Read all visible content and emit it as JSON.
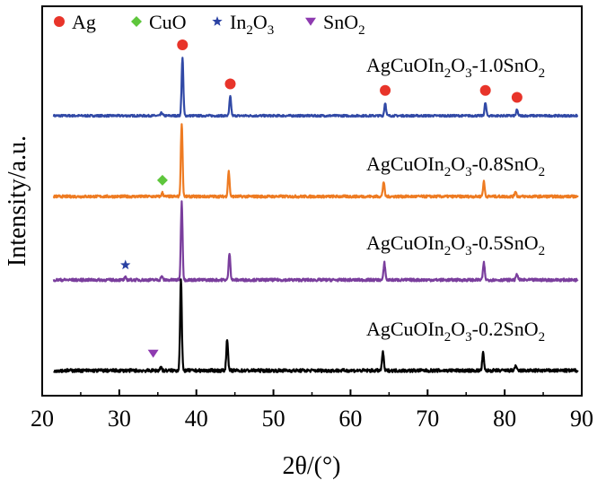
{
  "chart_data": {
    "type": "line",
    "xlabel": "2θ/(°)",
    "ylabel": "Intensity/a.u.",
    "xlim": [
      20,
      90
    ],
    "x_ticks": [
      20,
      30,
      40,
      50,
      60,
      70,
      80,
      90
    ],
    "grid": false,
    "legend": {
      "placement": "top-left",
      "items": [
        {
          "label": "Ag",
          "marker": "circle",
          "color": "#e8342a"
        },
        {
          "label": "CuO",
          "marker": "diamond",
          "color": "#5ec63c"
        },
        {
          "label": "In2O3",
          "marker": "star",
          "color": "#2a41a3"
        },
        {
          "label": "SnO2",
          "marker": "triangle-down",
          "color": "#8e3bb0"
        }
      ]
    },
    "x_start": 21.5,
    "x_end": 89.5,
    "series": [
      {
        "name": "AgCuOIn2O3-1.0SnO2",
        "color": "#3149a6",
        "peaks": [
          {
            "x": 35.5,
            "h": 0.05
          },
          {
            "x": 38.2,
            "h": 1.0
          },
          {
            "x": 44.4,
            "h": 0.33
          },
          {
            "x": 64.5,
            "h": 0.22
          },
          {
            "x": 77.5,
            "h": 0.22
          },
          {
            "x": 81.6,
            "h": 0.1
          }
        ],
        "markers": [
          {
            "x": 38.2,
            "type": "Ag"
          },
          {
            "x": 44.4,
            "type": "Ag"
          },
          {
            "x": 64.5,
            "type": "Ag"
          },
          {
            "x": 77.5,
            "type": "Ag"
          },
          {
            "x": 81.6,
            "type": "Ag"
          }
        ]
      },
      {
        "name": "AgCuOIn2O3-0.8SnO2",
        "color": "#ee7b22",
        "peaks": [
          {
            "x": 35.6,
            "h": 0.05
          },
          {
            "x": 38.1,
            "h": 1.0
          },
          {
            "x": 44.2,
            "h": 0.34
          },
          {
            "x": 64.3,
            "h": 0.2
          },
          {
            "x": 77.3,
            "h": 0.2
          },
          {
            "x": 81.4,
            "h": 0.07
          }
        ],
        "markers": [
          {
            "x": 35.6,
            "type": "CuO"
          }
        ]
      },
      {
        "name": "AgCuOIn2O3-0.5SnO2",
        "color": "#7a3e9d",
        "peaks": [
          {
            "x": 30.8,
            "h": 0.03
          },
          {
            "x": 35.5,
            "h": 0.05
          },
          {
            "x": 38.1,
            "h": 1.0
          },
          {
            "x": 44.3,
            "h": 0.35
          },
          {
            "x": 64.4,
            "h": 0.22
          },
          {
            "x": 77.3,
            "h": 0.22
          },
          {
            "x": 81.6,
            "h": 0.08
          }
        ],
        "markers": [
          {
            "x": 30.8,
            "type": "In2O3"
          }
        ]
      },
      {
        "name": "AgCuOIn2O3-0.2SnO2",
        "color": "#000000",
        "peaks": [
          {
            "x": 35.4,
            "h": 0.04
          },
          {
            "x": 38.0,
            "h": 1.0
          },
          {
            "x": 44.0,
            "h": 0.35
          },
          {
            "x": 64.2,
            "h": 0.21
          },
          {
            "x": 77.2,
            "h": 0.19
          },
          {
            "x": 81.4,
            "h": 0.05
          }
        ],
        "markers": [
          {
            "x": 34.4,
            "type": "SnO2"
          }
        ]
      }
    ]
  }
}
